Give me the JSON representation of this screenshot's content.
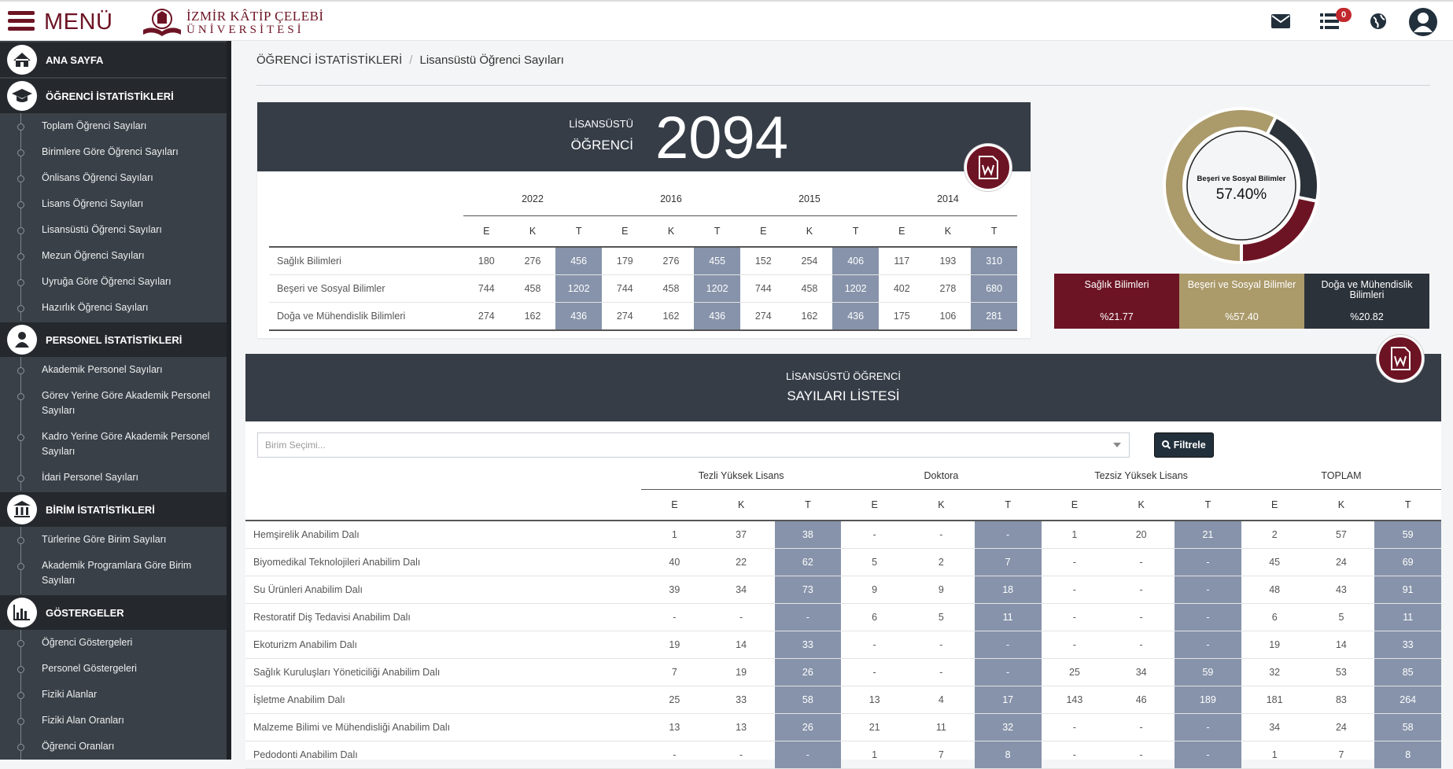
{
  "header": {
    "menu": "MENÜ",
    "logo_line1": "İZMİR KÂTİP ÇELEBİ",
    "logo_line2": "ÜNİVERSİTESİ",
    "notifications": 0
  },
  "sidebar": [
    {
      "title": "ANA SAYFA",
      "items": []
    },
    {
      "title": "ÖĞRENCİ İSTATİSTİKLERİ",
      "items": [
        "Toplam Öğrenci Sayıları",
        "Birimlere Göre Öğrenci Sayıları",
        "Önlisans Öğrenci Sayıları",
        "Lisans Öğrenci Sayıları",
        "Lisansüstü Öğrenci Sayıları",
        "Mezun Öğrenci Sayıları",
        "Uyruğa Göre Öğrenci Sayıları",
        "Hazırlık Öğrenci Sayıları"
      ]
    },
    {
      "title": "PERSONEL İSTATİSTİKLERİ",
      "items": [
        "Akademik Personel Sayıları",
        "Görev Yerine Göre Akademik Personel Sayıları",
        "Kadro Yerine Göre Akademik Personel Sayıları",
        "İdari Personel Sayıları"
      ]
    },
    {
      "title": "BİRİM İSTATİSTİKLERİ",
      "items": [
        "Türlerine Göre Birim Sayıları",
        "Akademik Programlara Göre Birim Sayıları"
      ]
    },
    {
      "title": "GÖSTERGELER",
      "items": [
        "Öğrenci Göstergeleri",
        "Personel Göstergeleri",
        "Fiziki Alanlar",
        "Fiziki Alan Oranları",
        "Öğrenci Oranları"
      ]
    }
  ],
  "breadcrumb": [
    "ÖĞRENCİ İSTATİSTİKLERİ",
    "Lisansüstü Öğrenci Sayıları"
  ],
  "summary": {
    "label_line1": "LİSANSÜSTÜ",
    "label_line2": "ÖĞRENCİ",
    "total": 2094,
    "years": [
      2022,
      2016,
      2015,
      2014
    ],
    "subheads": [
      "E",
      "K",
      "T"
    ],
    "rows": [
      {
        "name": "Sağlık Bilimleri",
        "values": [
          180,
          276,
          456,
          179,
          276,
          455,
          152,
          254,
          406,
          117,
          193,
          310
        ]
      },
      {
        "name": "Beşeri ve Sosyal Bilimler",
        "values": [
          744,
          458,
          1202,
          744,
          458,
          1202,
          744,
          458,
          1202,
          402,
          278,
          680
        ]
      },
      {
        "name": "Doğa ve Mühendislik Bilimleri",
        "values": [
          274,
          162,
          436,
          274,
          162,
          436,
          274,
          162,
          436,
          175,
          106,
          281
        ]
      }
    ]
  },
  "donut": {
    "center_label": "57.40%",
    "segments": [
      {
        "name": "Sağlık Bilimleri",
        "value": 21.77,
        "label": "%21.77",
        "color": "#6d1424"
      },
      {
        "name": "Beşeri ve Sosyal Bilimler",
        "value": 57.4,
        "label": "%57.40",
        "color": "#ab9a6a"
      },
      {
        "name": "Doğa ve Mühendislik Bilimleri",
        "value": 20.82,
        "label": "%20.82",
        "color": "#2c323a"
      }
    ]
  },
  "list": {
    "title_line1": "LİSANSÜSTÜ ÖĞRENCİ",
    "title_line2": "SAYILARI LİSTESİ",
    "select_placeholder": "Birim Seçimi...",
    "filter_button": "Filtrele",
    "groups": [
      "Tezli Yüksek Lisans",
      "Doktora",
      "Tezsiz Yüksek Lisans",
      "TOPLAM"
    ],
    "subheads": [
      "E",
      "K",
      "T"
    ],
    "rows": [
      {
        "name": "Hemşirelik Anabilim Dalı",
        "values": [
          1,
          37,
          38,
          "-",
          "-",
          "-",
          1,
          20,
          21,
          2,
          57,
          59
        ]
      },
      {
        "name": "Biyomedikal Teknolojileri Anabilim Dalı",
        "values": [
          40,
          22,
          62,
          5,
          2,
          7,
          "-",
          "-",
          "-",
          45,
          24,
          69
        ]
      },
      {
        "name": "Su Ürünleri Anabilim Dalı",
        "values": [
          39,
          34,
          73,
          9,
          9,
          18,
          "-",
          "-",
          "-",
          48,
          43,
          91
        ]
      },
      {
        "name": "Restoratif Diş Tedavisi Anabilim Dalı",
        "values": [
          "-",
          "-",
          "-",
          6,
          5,
          11,
          "-",
          "-",
          "-",
          6,
          5,
          11
        ]
      },
      {
        "name": "Ekoturizm Anabilim Dalı",
        "values": [
          19,
          14,
          33,
          "-",
          "-",
          "-",
          "-",
          "-",
          "-",
          19,
          14,
          33
        ]
      },
      {
        "name": "Sağlık Kuruluşları Yöneticiliği Anabilim Dalı",
        "values": [
          7,
          19,
          26,
          "-",
          "-",
          "-",
          25,
          34,
          59,
          32,
          53,
          85
        ]
      },
      {
        "name": "İşletme Anabilim Dalı",
        "values": [
          25,
          33,
          58,
          13,
          4,
          17,
          143,
          46,
          189,
          181,
          83,
          264
        ]
      },
      {
        "name": "Malzeme Bilimi ve Mühendisliği Anabilim Dalı",
        "values": [
          13,
          13,
          26,
          21,
          11,
          32,
          "-",
          "-",
          "-",
          34,
          24,
          58
        ]
      },
      {
        "name": "Pedodonti Anabilim Dalı",
        "values": [
          "-",
          "-",
          "-",
          1,
          7,
          8,
          "-",
          "-",
          "-",
          1,
          7,
          8
        ]
      }
    ]
  }
}
